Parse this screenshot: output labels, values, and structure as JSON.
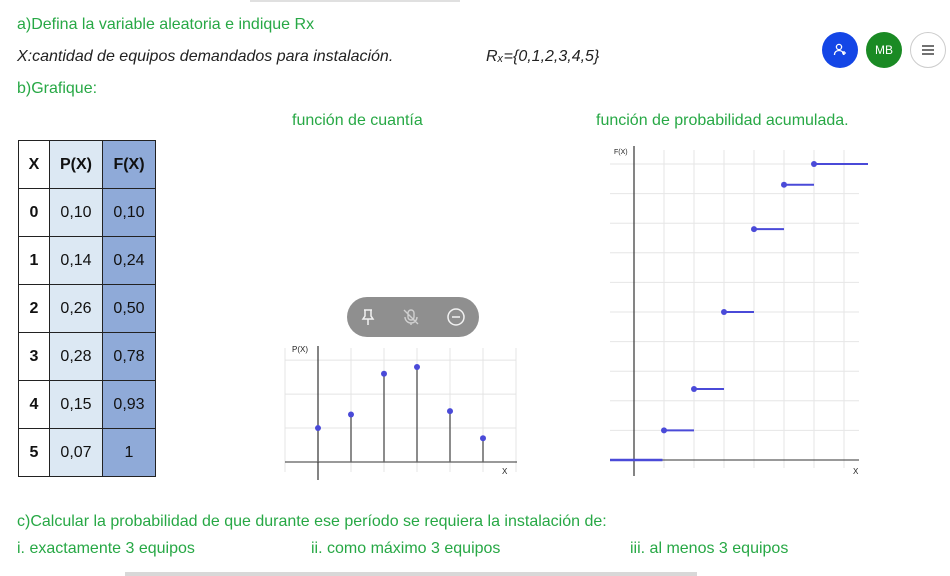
{
  "questions": {
    "a": "a)Defina la variable aleatoria e indique Rx",
    "x_def": "X:cantidad de equipos demandados para instalación.",
    "rx_def": "Rₓ={0,1,2,3,4,5}",
    "b": "b)Grafique:",
    "c": "c)Calcular la probabilidad de que durante ese período se requiera la instalación de:",
    "c_items": [
      "i. exactamente 3 equipos",
      "ii. como máximo 3 equipos",
      "iii. al menos 3 equipos"
    ]
  },
  "chart_titles": {
    "pmf": "función de cuantía",
    "cdf": "función de probabilidad acumulada."
  },
  "table": {
    "headers": [
      "X",
      "P(X)",
      "F(X)"
    ],
    "rows": [
      [
        "0",
        "0,10",
        "0,10"
      ],
      [
        "1",
        "0,14",
        "0,24"
      ],
      [
        "2",
        "0,26",
        "0,50"
      ],
      [
        "3",
        "0,28",
        "0,78"
      ],
      [
        "4",
        "0,15",
        "0,93"
      ],
      [
        "5",
        "0,07",
        "1"
      ]
    ]
  },
  "fabs": {
    "user_icon": "person-add-icon",
    "mb": "MB",
    "menu_icon": "menu-icon"
  },
  "toolbar": {
    "pin_icon": "pin-icon",
    "mute_icon": "mic-off-icon",
    "minus_icon": "minus-circle-icon"
  },
  "colors": {
    "accent_green": "#27a845",
    "point_blue": "#4a4ad8",
    "fab_blue": "#1446e6",
    "fab_green": "#1a8a24"
  },
  "chart_data": [
    {
      "type": "scatter",
      "ylabel": "P(X)",
      "xlabel": "X",
      "x": [
        0,
        1,
        2,
        3,
        4,
        5
      ],
      "y": [
        0.1,
        0.14,
        0.26,
        0.28,
        0.15,
        0.07
      ],
      "grid": true
    },
    {
      "type": "line",
      "ylabel": "F(X)",
      "xlabel": "X",
      "x": [
        0,
        1,
        2,
        3,
        4,
        5
      ],
      "y": [
        0.1,
        0.24,
        0.5,
        0.78,
        0.93,
        1
      ],
      "grid": true
    }
  ]
}
